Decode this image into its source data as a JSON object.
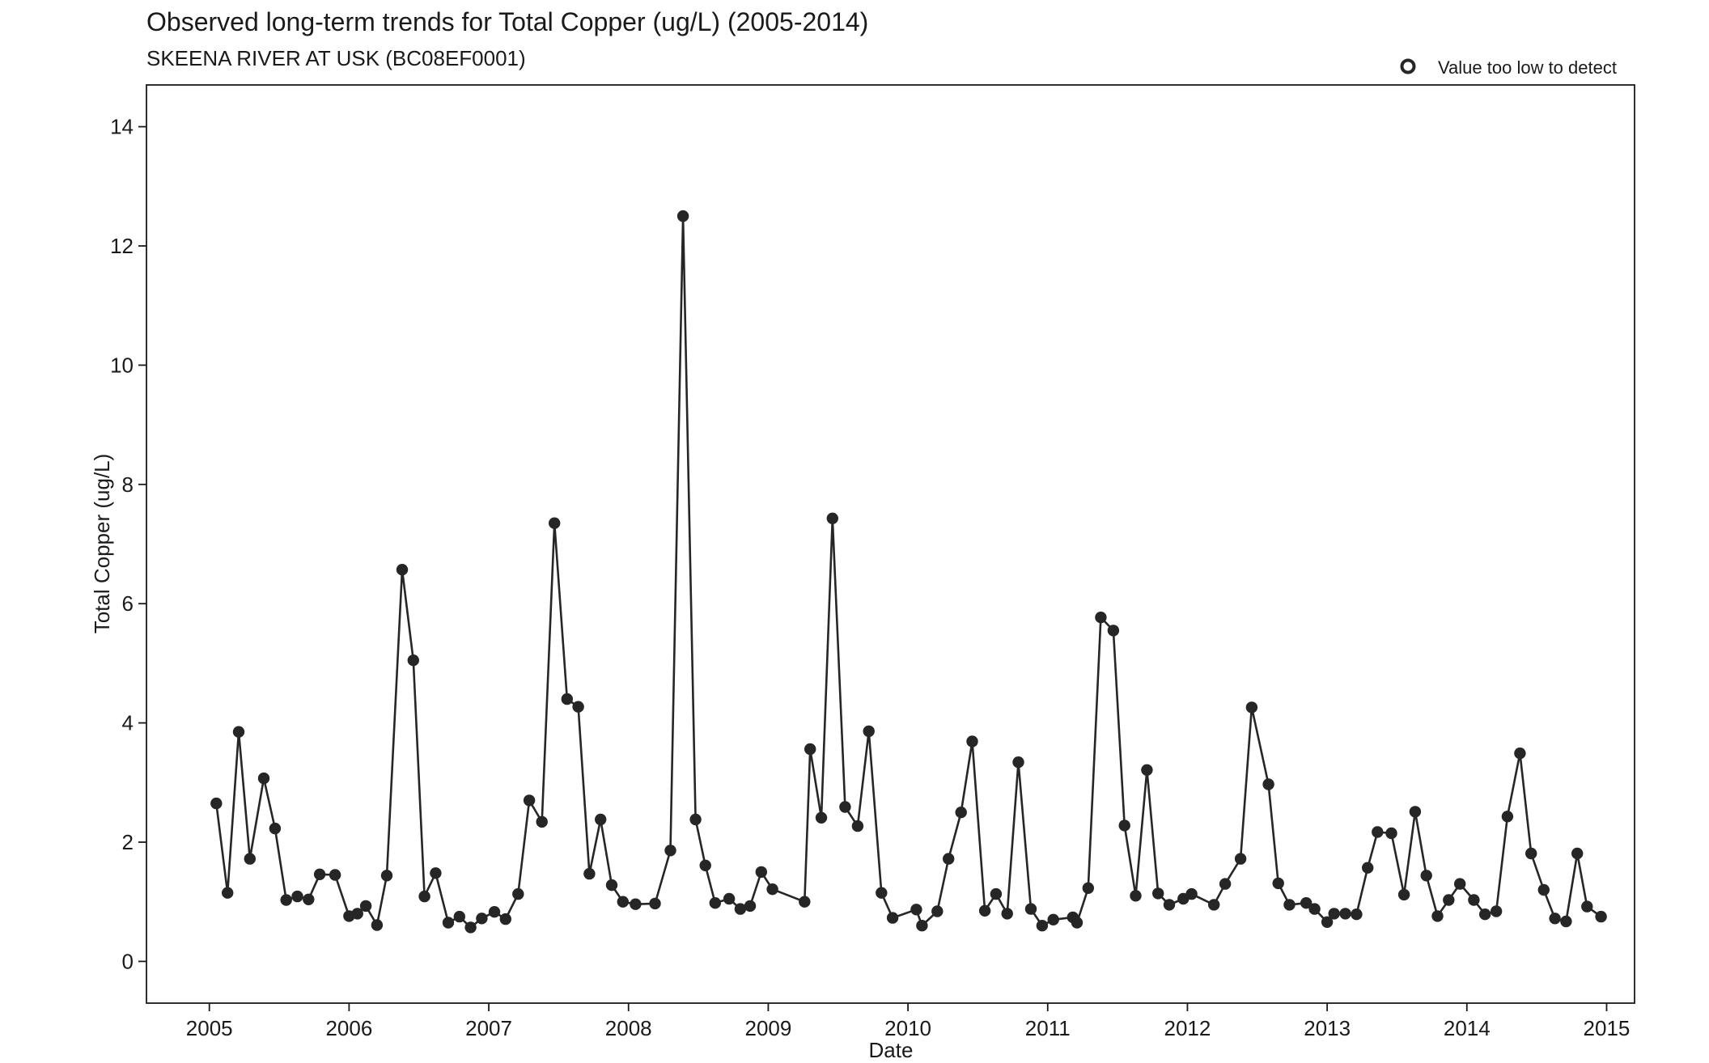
{
  "chart_data": {
    "type": "line",
    "title": "Observed long-term trends for Total Copper (ug/L) (2005-2014)",
    "subtitle": "SKEENA RIVER AT USK (BC08EF0001)",
    "xlabel": "Date",
    "ylabel": "Total Copper (ug/L)",
    "legend": {
      "marker": "open-circle",
      "label": "Value too low to detect",
      "position": "top-right"
    },
    "xlim": [
      2004.55,
      2015.2
    ],
    "ylim": [
      -0.7,
      14.7
    ],
    "x_ticks": [
      2005,
      2006,
      2007,
      2008,
      2009,
      2010,
      2011,
      2012,
      2013,
      2014,
      2015
    ],
    "y_ticks": [
      0,
      2,
      4,
      6,
      8,
      10,
      12,
      14
    ],
    "grid": false,
    "colors": {
      "series": "#262626",
      "axis": "#1a1a1a",
      "background": "#ffffff"
    },
    "series": [
      {
        "marker": "filled-circle",
        "x": [
          2005.05,
          2005.13,
          2005.21,
          2005.29,
          2005.39,
          2005.47,
          2005.55,
          2005.63,
          2005.71,
          2005.79,
          2005.9,
          2006.0,
          2006.06,
          2006.12,
          2006.2,
          2006.27,
          2006.38,
          2006.46,
          2006.54,
          2006.62,
          2006.71,
          2006.79,
          2006.87,
          2006.95,
          2007.04,
          2007.12,
          2007.21,
          2007.29,
          2007.38,
          2007.47,
          2007.56,
          2007.64,
          2007.72,
          2007.8,
          2007.88,
          2007.96,
          2008.05,
          2008.19,
          2008.3,
          2008.39,
          2008.48,
          2008.55,
          2008.62,
          2008.72,
          2008.8,
          2008.87,
          2008.95,
          2009.03,
          2009.26,
          2009.3,
          2009.38,
          2009.46,
          2009.55,
          2009.64,
          2009.72,
          2009.81,
          2009.89,
          2010.06,
          2010.1,
          2010.21,
          2010.29,
          2010.38,
          2010.46,
          2010.55,
          2010.63,
          2010.71,
          2010.79,
          2010.88,
          2010.96,
          2011.04,
          2011.18,
          2011.21,
          2011.29,
          2011.38,
          2011.47,
          2011.55,
          2011.63,
          2011.71,
          2011.79,
          2011.87,
          2011.97,
          2012.03,
          2012.19,
          2012.27,
          2012.38,
          2012.46,
          2012.58,
          2012.65,
          2012.73,
          2012.85,
          2012.91,
          2013.0,
          2013.05,
          2013.13,
          2013.21,
          2013.29,
          2013.36,
          2013.46,
          2013.55,
          2013.63,
          2013.71,
          2013.79,
          2013.87,
          2013.95,
          2014.05,
          2014.13,
          2014.21,
          2014.29,
          2014.38,
          2014.46,
          2014.55,
          2014.63,
          2014.71,
          2014.79,
          2014.86,
          2014.96
        ],
        "y": [
          2.65,
          1.15,
          3.85,
          1.72,
          3.07,
          2.23,
          1.03,
          1.09,
          1.04,
          1.46,
          1.45,
          0.76,
          0.8,
          0.93,
          0.61,
          1.44,
          6.57,
          5.05,
          1.09,
          1.48,
          0.65,
          0.75,
          0.57,
          0.72,
          0.83,
          0.71,
          1.13,
          2.7,
          2.34,
          7.35,
          4.4,
          4.27,
          1.47,
          2.38,
          1.28,
          1.0,
          0.96,
          0.97,
          1.86,
          12.5,
          2.38,
          1.61,
          0.98,
          1.05,
          0.88,
          0.93,
          1.5,
          1.21,
          1.0,
          3.56,
          2.41,
          7.43,
          2.59,
          2.27,
          3.86,
          1.15,
          0.73,
          0.87,
          0.6,
          0.84,
          1.72,
          2.5,
          3.69,
          0.85,
          1.13,
          0.8,
          3.34,
          0.88,
          0.6,
          0.7,
          0.74,
          0.65,
          1.23,
          5.77,
          5.55,
          2.28,
          1.1,
          3.21,
          1.14,
          0.95,
          1.05,
          1.13,
          0.95,
          1.3,
          1.72,
          4.26,
          2.97,
          1.31,
          0.95,
          0.98,
          0.88,
          0.66,
          0.8,
          0.8,
          0.79,
          1.57,
          2.17,
          2.15,
          1.12,
          2.51,
          1.44,
          0.76,
          1.03,
          1.3,
          1.03,
          0.79,
          0.84,
          2.43,
          3.49,
          1.81,
          1.2,
          0.72,
          0.67,
          1.81,
          0.92,
          0.75
        ]
      }
    ]
  }
}
